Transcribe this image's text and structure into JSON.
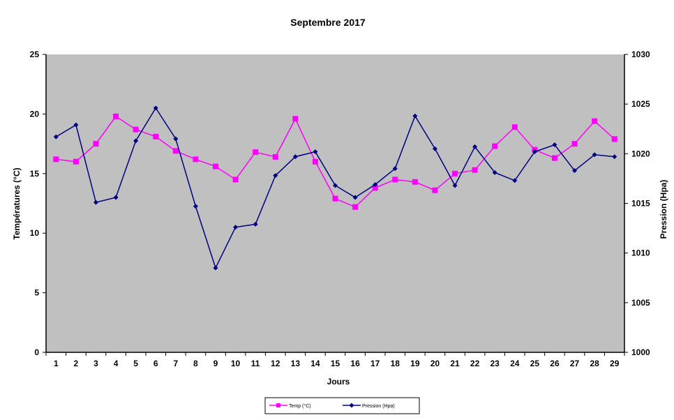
{
  "chart_data": {
    "type": "line",
    "title": "Septembre 2017",
    "xlabel": "Jours",
    "ylabel": "Températures (°C)",
    "y2label": "Pression (Hpa)",
    "x": [
      1,
      2,
      3,
      4,
      5,
      6,
      7,
      8,
      9,
      10,
      11,
      12,
      13,
      14,
      15,
      16,
      17,
      18,
      19,
      20,
      21,
      22,
      23,
      24,
      25,
      26,
      27,
      28,
      29
    ],
    "ylim": [
      0,
      25
    ],
    "yticks": [
      0,
      5,
      10,
      15,
      20,
      25
    ],
    "y2lim": [
      1000,
      1030
    ],
    "y2ticks": [
      1000,
      1005,
      1010,
      1015,
      1020,
      1025,
      1030
    ],
    "grid": false,
    "plot_background": "#c0c0c0",
    "legend_position": "bottom",
    "series": [
      {
        "name": "Temp (°C)",
        "axis": "left",
        "color": "#ff00ff",
        "marker": "square",
        "values": [
          16.2,
          16.0,
          17.5,
          19.8,
          18.7,
          18.1,
          16.9,
          16.2,
          15.6,
          14.5,
          16.8,
          16.4,
          19.6,
          16.0,
          12.9,
          12.2,
          13.8,
          14.5,
          14.3,
          13.6,
          15.0,
          15.3,
          17.3,
          18.9,
          17.0,
          16.3,
          17.5,
          19.4,
          17.9
        ]
      },
      {
        "name": "Pression (Hpa)",
        "axis": "right",
        "color": "#000080",
        "marker": "diamond",
        "values": [
          1021.7,
          1022.9,
          1015.1,
          1015.6,
          1021.3,
          1024.6,
          1021.5,
          1014.7,
          1008.5,
          1012.6,
          1012.9,
          1017.8,
          1019.7,
          1020.2,
          1016.8,
          1015.6,
          1016.9,
          1018.5,
          1023.8,
          1020.5,
          1016.8,
          1020.7,
          1018.1,
          1017.3,
          1020.2,
          1020.9,
          1018.3,
          1019.9,
          1019.7
        ]
      }
    ]
  }
}
